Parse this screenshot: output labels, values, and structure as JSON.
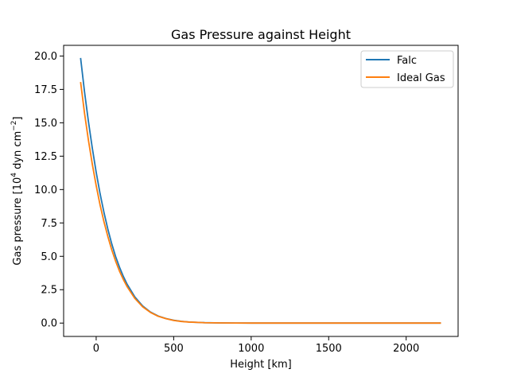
{
  "chart_data": {
    "type": "line",
    "title": "Gas Pressure against Height",
    "xlabel": "Height [km]",
    "ylabel": {
      "before": "Gas pressure [10",
      "sup1": "4",
      "middle": " dyn cm",
      "sup2": "−2",
      "after": "]"
    },
    "xlim": [
      -210,
      2335
    ],
    "ylim": [
      -1.0,
      20.8
    ],
    "xticks": [
      0,
      500,
      1000,
      1500,
      2000
    ],
    "yticks": [
      0.0,
      2.5,
      5.0,
      7.5,
      10.0,
      12.5,
      15.0,
      17.5,
      20.0
    ],
    "xtick_labels": [
      "0",
      "500",
      "1000",
      "1500",
      "2000"
    ],
    "ytick_labels": [
      "0.0",
      "2.5",
      "5.0",
      "7.5",
      "10.0",
      "12.5",
      "15.0",
      "17.5",
      "20.0"
    ],
    "legend_position": "top-right",
    "grid": false,
    "x": [
      -100,
      -75,
      -50,
      -25,
      0,
      25,
      50,
      75,
      100,
      125,
      150,
      175,
      200,
      250,
      300,
      350,
      400,
      450,
      500,
      550,
      600,
      700,
      800,
      900,
      1000,
      1200,
      1400,
      1600,
      1800,
      2000,
      2220
    ],
    "series": [
      {
        "name": "Falc",
        "color": "#1f77b4",
        "values": [
          19.8,
          17.3,
          15.1,
          13.1,
          11.3,
          9.7,
          8.3,
          7.05,
          5.95,
          5.0,
          4.2,
          3.5,
          2.9,
          1.95,
          1.28,
          0.83,
          0.53,
          0.34,
          0.21,
          0.13,
          0.08,
          0.03,
          0.012,
          0.005,
          0.002,
          0.0005,
          0.0002,
          0.0001,
          0.0001,
          0.0001,
          0.0001
        ]
      },
      {
        "name": "Ideal Gas",
        "color": "#ff7f0e",
        "values": [
          18.0,
          15.7,
          13.7,
          11.9,
          10.3,
          8.85,
          7.6,
          6.5,
          5.5,
          4.65,
          3.9,
          3.27,
          2.72,
          1.84,
          1.22,
          0.8,
          0.51,
          0.33,
          0.2,
          0.12,
          0.075,
          0.028,
          0.011,
          0.004,
          0.0015,
          0.0004,
          0.0001,
          0.0001,
          0.0001,
          0.0001,
          0.0001
        ]
      }
    ]
  }
}
